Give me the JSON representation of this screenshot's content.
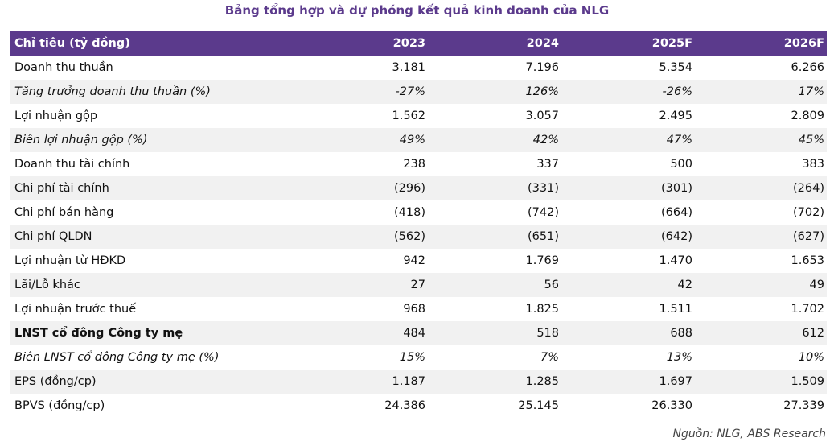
{
  "title": "Bảng tổng hợp và dự phóng kết quả kinh doanh của NLG",
  "table": {
    "headers": [
      "Chỉ tiêu (tỷ đồng)",
      "2023",
      "2024",
      "2025F",
      "2026F"
    ],
    "rows": [
      {
        "label": "Doanh thu thuần",
        "values": [
          "3.181",
          "7.196",
          "5.354",
          "6.266"
        ]
      },
      {
        "label": "Tăng trưởng doanh thu thuần (%)",
        "values": [
          "-27%",
          "126%",
          "-26%",
          "17%"
        ]
      },
      {
        "label": "Lợi nhuận gộp",
        "values": [
          "1.562",
          "3.057",
          "2.495",
          "2.809"
        ]
      },
      {
        "label": "Biên lợi nhuận gộp (%)",
        "values": [
          "49%",
          "42%",
          "47%",
          "45%"
        ]
      },
      {
        "label": "Doanh thu tài chính",
        "values": [
          "238",
          "337",
          "500",
          "383"
        ]
      },
      {
        "label": "Chi phí tài chính",
        "values": [
          "(296)",
          "(331)",
          "(301)",
          "(264)"
        ]
      },
      {
        "label": "Chi phí bán hàng",
        "values": [
          "(418)",
          "(742)",
          "(664)",
          "(702)"
        ]
      },
      {
        "label": "Chi phí QLDN",
        "values": [
          "(562)",
          "(651)",
          "(642)",
          "(627)"
        ]
      },
      {
        "label": "Lợi nhuận từ HĐKD",
        "values": [
          "942",
          "1.769",
          "1.470",
          "1.653"
        ]
      },
      {
        "label": "Lãi/Lỗ khác",
        "values": [
          "27",
          "56",
          "42",
          "49"
        ]
      },
      {
        "label": "Lợi nhuận trước thuế",
        "values": [
          "968",
          "1.825",
          "1.511",
          "1.702"
        ]
      },
      {
        "label": "LNST cổ đông Công ty mẹ",
        "values": [
          "484",
          "518",
          "688",
          "612"
        ]
      },
      {
        "label": "Biên LNST cổ đông Công ty mẹ (%)",
        "values": [
          "15%",
          "7%",
          "13%",
          "10%"
        ]
      },
      {
        "label": "EPS (đồng/cp)",
        "values": [
          "1.187",
          "1.285",
          "1.697",
          "1.509"
        ]
      },
      {
        "label": "BPVS (đồng/cp)",
        "values": [
          "24.386",
          "25.145",
          "26.330",
          "27.339"
        ]
      }
    ]
  },
  "source": "Nguồn: NLG, ABS Research",
  "colors": {
    "header_bg": "#5b3a8c",
    "title_text": "#5b3a8c",
    "stripe": "#f1f1f1"
  }
}
